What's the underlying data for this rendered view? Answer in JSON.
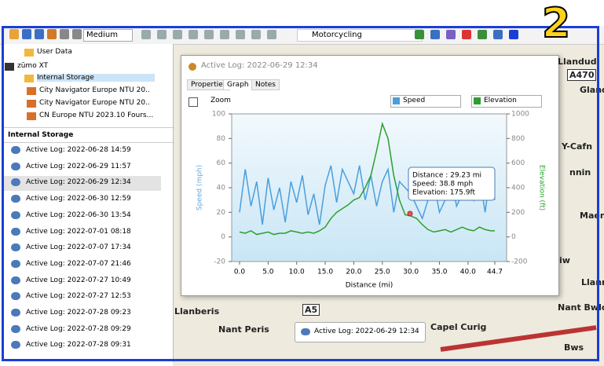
{
  "toolbar": {
    "zoom_level": "Medium",
    "profile": "Motorcycling"
  },
  "badge": "2",
  "tree": [
    "User Data",
    "zūmo XT",
    "Internal Storage",
    "City Navigator Europe NTU 20..",
    "City Navigator Europe NTU 20..",
    "CN Europe NTU 2023.10 Fours..."
  ],
  "list_header": "Internal Storage",
  "list": [
    "Active Log: 2022-06-28 14:59",
    "Active Log: 2022-06-29 11:57",
    "Active Log: 2022-06-29 12:34",
    "Active Log: 2022-06-30 12:59",
    "Active Log: 2022-06-30 13:54",
    "Active Log: 2022-07-01 08:18",
    "Active Log: 2022-07-07 17:34",
    "Active Log: 2022-07-07 21:46",
    "Active Log: 2022-07-27 10:49",
    "Active Log: 2022-07-27 12:53",
    "Active Log: 2022-07-28 09:23",
    "Active Log: 2022-07-28 09:29",
    "Active Log: 2022-07-28 09:31"
  ],
  "map_labels": [
    "Llandud",
    "A470",
    "Gland",
    "Y-Cafn",
    "nnin",
    "Maena",
    "iw",
    "Llanr",
    "Nant Bwlc",
    "Llanberis",
    "A5",
    "Nant Peris",
    "Capel Curig",
    "Bws"
  ],
  "dialog": {
    "title": "Active Log: 2022-06-29 12:34",
    "tabs": [
      "Properties",
      "Graph",
      "Notes"
    ],
    "zoom": "Zoom"
  },
  "popup": "Active Log: 2022-06-29 12:34",
  "chart_data": {
    "type": "line",
    "x_label": "Distance  (mi)",
    "y_label": "Speed (mph)",
    "y2_label": "Elevation (ft)",
    "x": [
      0,
      1,
      2,
      3,
      4,
      5,
      6,
      7,
      8,
      9,
      10,
      11,
      12,
      13,
      14,
      15,
      16,
      17,
      18,
      19,
      20,
      21,
      22,
      23,
      24,
      25,
      26,
      27,
      28,
      29,
      30,
      31,
      32,
      33,
      34,
      35,
      36,
      37,
      38,
      39,
      40,
      41,
      42,
      43,
      44,
      44.7
    ],
    "series": [
      {
        "name": "Speed",
        "color": "#4a9fdc",
        "values": [
          20,
          55,
          25,
          45,
          10,
          48,
          22,
          40,
          12,
          45,
          28,
          50,
          18,
          35,
          10,
          42,
          58,
          28,
          55,
          45,
          35,
          58,
          30,
          50,
          25,
          45,
          55,
          20,
          45,
          40,
          35,
          25,
          15,
          30,
          45,
          20,
          30,
          50,
          25,
          35,
          45,
          30,
          50,
          20,
          55,
          30
        ]
      },
      {
        "name": "Elevation",
        "color": "#2ca02c",
        "axis": "y2",
        "values": [
          40,
          30,
          50,
          20,
          30,
          40,
          20,
          30,
          30,
          50,
          40,
          30,
          40,
          30,
          50,
          80,
          150,
          200,
          230,
          260,
          300,
          320,
          400,
          500,
          700,
          920,
          800,
          500,
          300,
          180,
          170,
          150,
          100,
          60,
          40,
          50,
          60,
          40,
          60,
          80,
          60,
          50,
          80,
          60,
          50,
          50
        ]
      }
    ],
    "xlim": [
      0,
      44.7
    ],
    "xticks": [
      {
        "value": 0,
        "label": "0.0"
      },
      {
        "value": 5,
        "label": "5.0"
      },
      {
        "value": 10,
        "label": "10.0"
      },
      {
        "value": 15,
        "label": "15.0"
      },
      {
        "value": 20,
        "label": "20.0"
      },
      {
        "value": 25,
        "label": "25.0"
      },
      {
        "value": 30,
        "label": "30.0"
      },
      {
        "value": 35,
        "label": "35.0"
      },
      {
        "value": 40,
        "label": "40.0"
      },
      44.7
    ],
    "ylim": [
      -20,
      100
    ],
    "yticks": [
      -20,
      0,
      20,
      40,
      60,
      80,
      100
    ],
    "y2lim": [
      -200,
      1000
    ],
    "y2ticks": [
      -200,
      0,
      200,
      400,
      600,
      800,
      1000
    ],
    "annotation": [
      "Distance : 29.23 mi",
      "Speed: 38.8 mph",
      "Elevation: 175.9ft"
    ]
  }
}
